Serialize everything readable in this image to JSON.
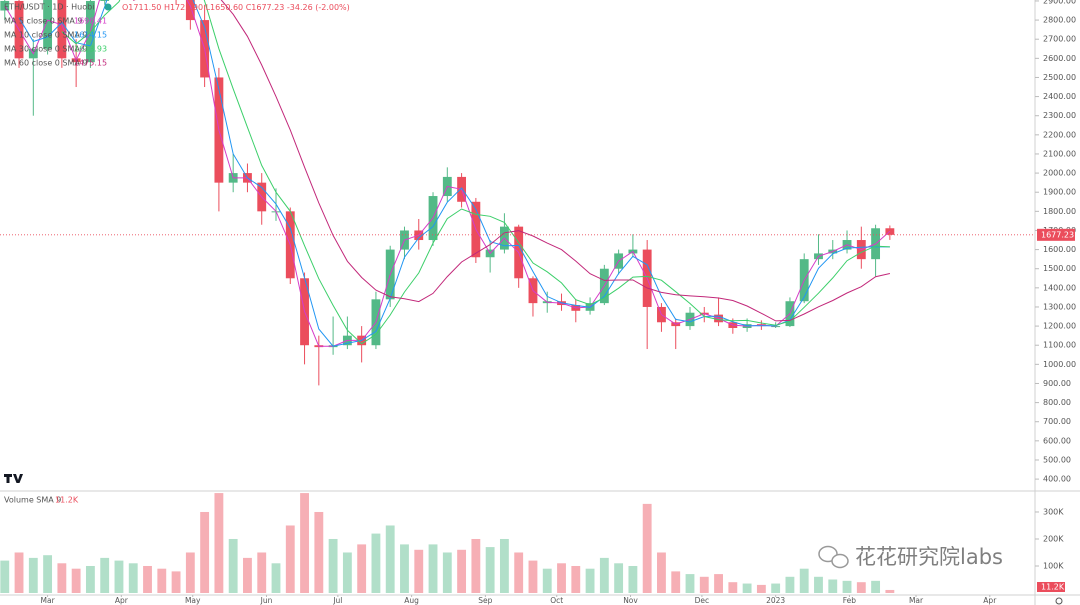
{
  "chart_data": {
    "type": "candlestick",
    "title": "ETH/USDT · 1D · Huobi",
    "ohlc_labels": [
      "O1711.50",
      "H1725.90",
      "L1650.60",
      "C1677.23"
    ],
    "change_label": "-34.26 (-2.00%)",
    "up_color": "#53b987",
    "down_color": "#eb4d5c",
    "x": [
      -18,
      -12,
      -6,
      0,
      6,
      12,
      18,
      24,
      30,
      36,
      42,
      48,
      54,
      60,
      66,
      72,
      78,
      84,
      90,
      96,
      102,
      108,
      114,
      120,
      126,
      132,
      138,
      144,
      150,
      156,
      162,
      168,
      174,
      180,
      186,
      192,
      198,
      204,
      210,
      216,
      222,
      228,
      234,
      240,
      246,
      252,
      258,
      264,
      270,
      276,
      282,
      288,
      294,
      300,
      306,
      312,
      318,
      324,
      330,
      336,
      342,
      348,
      354
    ],
    "xlim": [
      -20,
      415
    ],
    "xticks": [
      {
        "value": 0,
        "label": "Mar"
      },
      {
        "value": 31,
        "label": "Apr"
      },
      {
        "value": 61,
        "label": "May"
      },
      {
        "value": 92,
        "label": "Jun"
      },
      {
        "value": 122,
        "label": "Jul"
      },
      {
        "value": 153,
        "label": "Aug"
      },
      {
        "value": 184,
        "label": "Sep"
      },
      {
        "value": 214,
        "label": "Oct"
      },
      {
        "value": 245,
        "label": "Nov"
      },
      {
        "value": 275,
        "label": "Dec"
      },
      {
        "value": 306,
        "label": "2023"
      },
      {
        "value": 337,
        "label": "Feb"
      },
      {
        "value": 365,
        "label": "Mar"
      },
      {
        "value": 396,
        "label": "Apr"
      }
    ],
    "open": [
      2850,
      2900,
      2600,
      2650,
      2950,
      2600,
      2580,
      2900,
      3100,
      3300,
      3450,
      3200,
      3050,
      2950,
      2800,
      2500,
      1950,
      2000,
      1950,
      1800,
      1800,
      1450,
      1100,
      1090,
      1100,
      1150,
      1100,
      1340,
      1600,
      1700,
      1650,
      1880,
      1980,
      1850,
      1560,
      1600,
      1720,
      1450,
      1320,
      1330,
      1310,
      1280,
      1320,
      1500,
      1580,
      1600,
      1300,
      1220,
      1200,
      1270,
      1260,
      1220,
      1190,
      1210,
      1200,
      1200,
      1330,
      1550,
      1580,
      1600,
      1650,
      1550,
      1711.5
    ],
    "high": [
      2950,
      2930,
      2700,
      3000,
      3000,
      2700,
      2950,
      3150,
      3400,
      3550,
      3480,
      3250,
      3100,
      2980,
      2880,
      2550,
      2100,
      2050,
      2000,
      1920,
      1820,
      1480,
      1150,
      1250,
      1250,
      1200,
      1380,
      1620,
      1720,
      1760,
      1900,
      2030,
      2000,
      1870,
      1650,
      1790,
      1730,
      1460,
      1380,
      1370,
      1340,
      1350,
      1520,
      1600,
      1680,
      1650,
      1320,
      1240,
      1300,
      1300,
      1350,
      1240,
      1240,
      1230,
      1220,
      1350,
      1580,
      1680,
      1650,
      1700,
      1720,
      1730,
      1725.9
    ],
    "low": [
      2800,
      2550,
      2300,
      2620,
      2550,
      2450,
      2550,
      2880,
      3050,
      3250,
      3100,
      2950,
      2880,
      2750,
      2450,
      1800,
      1900,
      1900,
      1730,
      1750,
      1420,
      1000,
      890,
      1050,
      1080,
      1010,
      1080,
      1300,
      1550,
      1600,
      1620,
      1850,
      1820,
      1530,
      1480,
      1580,
      1400,
      1250,
      1270,
      1280,
      1220,
      1260,
      1310,
      1470,
      1560,
      1080,
      1170,
      1080,
      1180,
      1220,
      1200,
      1160,
      1170,
      1180,
      1190,
      1195,
      1320,
      1520,
      1550,
      1580,
      1500,
      1460,
      1650.6
    ],
    "close": [
      2900,
      2600,
      2650,
      2950,
      2600,
      2580,
      2900,
      3100,
      3300,
      3450,
      3200,
      3050,
      2950,
      2800,
      2500,
      1950,
      2000,
      1950,
      1800,
      1800,
      1450,
      1100,
      1090,
      1100,
      1150,
      1100,
      1340,
      1600,
      1700,
      1650,
      1880,
      1980,
      1850,
      1560,
      1600,
      1720,
      1450,
      1320,
      1330,
      1310,
      1280,
      1320,
      1500,
      1580,
      1600,
      1300,
      1220,
      1200,
      1270,
      1260,
      1220,
      1190,
      1210,
      1200,
      1200,
      1330,
      1550,
      1580,
      1600,
      1650,
      1550,
      1711.5,
      1677.23
    ],
    "ylim": [
      343,
      2905
    ],
    "yticks": [
      {
        "value": 400,
        "label": "400.00"
      },
      {
        "value": 500,
        "label": "500.00"
      },
      {
        "value": 600,
        "label": "600.00"
      },
      {
        "value": 700,
        "label": "700.00"
      },
      {
        "value": 800,
        "label": "800.00"
      },
      {
        "value": 900,
        "label": "900.00"
      },
      {
        "value": 1000,
        "label": "1000.00"
      },
      {
        "value": 1100,
        "label": "1100.00"
      },
      {
        "value": 1200,
        "label": "1200.00"
      },
      {
        "value": 1300,
        "label": "1300.00"
      },
      {
        "value": 1400,
        "label": "1400.00"
      },
      {
        "value": 1500,
        "label": "1500.00"
      },
      {
        "value": 1600,
        "label": "1600.00"
      },
      {
        "value": 1700,
        "label": "1700.00"
      },
      {
        "value": 1800,
        "label": "1800.00"
      },
      {
        "value": 1900,
        "label": "1900.00"
      },
      {
        "value": 2000,
        "label": "2000.00"
      },
      {
        "value": 2100,
        "label": "2100.00"
      },
      {
        "value": 2200,
        "label": "2200.00"
      },
      {
        "value": 2300,
        "label": "2300.00"
      },
      {
        "value": 2400,
        "label": "2400.00"
      },
      {
        "value": 2500,
        "label": "2500.00"
      },
      {
        "value": 2600,
        "label": "2600.00"
      },
      {
        "value": 2700,
        "label": "2700.00"
      },
      {
        "value": 2800,
        "label": "2800.00"
      },
      {
        "value": 2900,
        "label": "2900.00"
      }
    ],
    "last_price": {
      "value": 1677.23,
      "label": "1677.23"
    },
    "ma_series": [
      {
        "name": "MA 5 close 0 SMA 9",
        "color": "#d63cc8",
        "last_value_label": "1696.41",
        "values": [
          2875,
          2750,
          2625,
          2800,
          2775,
          2590,
          2740,
          3000,
          3200,
          3375,
          3325,
          3125,
          3000,
          2875,
          2650,
          2225,
          1975,
          1975,
          1875,
          1800,
          1625,
          1275,
          1095,
          1095,
          1125,
          1125,
          1220,
          1470,
          1650,
          1675,
          1765,
          1930,
          1915,
          1705,
          1580,
          1660,
          1585,
          1385,
          1325,
          1320,
          1295,
          1300,
          1410,
          1540,
          1590,
          1450,
          1260,
          1210,
          1235,
          1265,
          1240,
          1205,
          1200,
          1205,
          1200,
          1265,
          1440,
          1565,
          1590,
          1625,
          1600,
          1630,
          1696.41
        ]
      },
      {
        "name": "MA 10 close 0 SMA 9",
        "color": "#2196f3",
        "last_value_label": "1614.15",
        "values": [
          null,
          2812,
          2688,
          2712,
          2788,
          2682,
          2665,
          2870,
          3100,
          3288,
          3350,
          3225,
          3062,
          2938,
          2762,
          2438,
          2100,
          1975,
          1925,
          1838,
          1712,
          1450,
          1185,
          1095,
          1110,
          1125,
          1172,
          1345,
          1560,
          1662,
          1720,
          1848,
          1922,
          1810,
          1642,
          1620,
          1622,
          1485,
          1355,
          1322,
          1308,
          1298,
          1355,
          1475,
          1565,
          1520,
          1355,
          1235,
          1222,
          1250,
          1252,
          1222,
          1202,
          1202,
          1202,
          1232,
          1352,
          1502,
          1578,
          1608,
          1612,
          1615,
          1614.15
        ]
      },
      {
        "name": "MA 30 close 0 SMA 9",
        "color": "#3ccf6a",
        "last_value_label": "1613.93",
        "values": [
          null,
          null,
          null,
          null,
          2740,
          2676,
          2736,
          2826,
          2896,
          3066,
          3190,
          3220,
          3190,
          3090,
          2900,
          2650,
          2440,
          2240,
          2040,
          1900,
          1800,
          1620,
          1448,
          1308,
          1178,
          1108,
          1156,
          1258,
          1378,
          1478,
          1634,
          1762,
          1812,
          1784,
          1774,
          1742,
          1636,
          1530,
          1484,
          1426,
          1338,
          1312,
          1348,
          1398,
          1456,
          1460,
          1440,
          1380,
          1318,
          1250,
          1234,
          1228,
          1230,
          1216,
          1204,
          1226,
          1298,
          1372,
          1452,
          1542,
          1586,
          1618,
          1613.93
        ]
      },
      {
        "name": "MA 60 close 0 SMA 9",
        "color": "#c2287a",
        "last_value_label": "1475.15",
        "values": [
          null,
          null,
          null,
          null,
          null,
          null,
          null,
          null,
          null,
          2903,
          2933,
          2978,
          3008,
          2993,
          2983,
          2920,
          2830,
          2715,
          2565,
          2400,
          2225,
          2030,
          1844,
          1674,
          1539,
          1454,
          1388,
          1353,
          1343,
          1328,
          1371,
          1459,
          1535,
          1581,
          1626,
          1688,
          1699,
          1671,
          1634,
          1600,
          1540,
          1474,
          1439,
          1441,
          1441,
          1399,
          1376,
          1364,
          1358,
          1353,
          1347,
          1334,
          1305,
          1267,
          1227,
          1230,
          1263,
          1301,
          1334,
          1373,
          1406,
          1458,
          1475.15
        ]
      }
    ],
    "volume_title": "Volume SMA 9",
    "volume": [
      120000,
      150000,
      130000,
      140000,
      110000,
      90000,
      100000,
      130000,
      120000,
      110000,
      100000,
      90000,
      80000,
      150000,
      300000,
      370000,
      200000,
      130000,
      150000,
      110000,
      250000,
      370000,
      300000,
      200000,
      150000,
      180000,
      220000,
      250000,
      180000,
      160000,
      180000,
      150000,
      160000,
      200000,
      170000,
      200000,
      150000,
      120000,
      90000,
      110000,
      100000,
      90000,
      130000,
      110000,
      100000,
      330000,
      150000,
      80000,
      70000,
      60000,
      70000,
      40000,
      35000,
      30000,
      35000,
      60000,
      90000,
      60000,
      50000,
      45000,
      40000,
      45000,
      11200
    ],
    "volume_last_label": "11.2K",
    "volume_ylim": [
      0,
      374000
    ],
    "volume_yticks": [
      {
        "value": 100000,
        "label": "100K"
      },
      {
        "value": 200000,
        "label": "200K"
      },
      {
        "value": 300000,
        "label": "300K"
      }
    ]
  },
  "watermark": "花花研究院labs"
}
